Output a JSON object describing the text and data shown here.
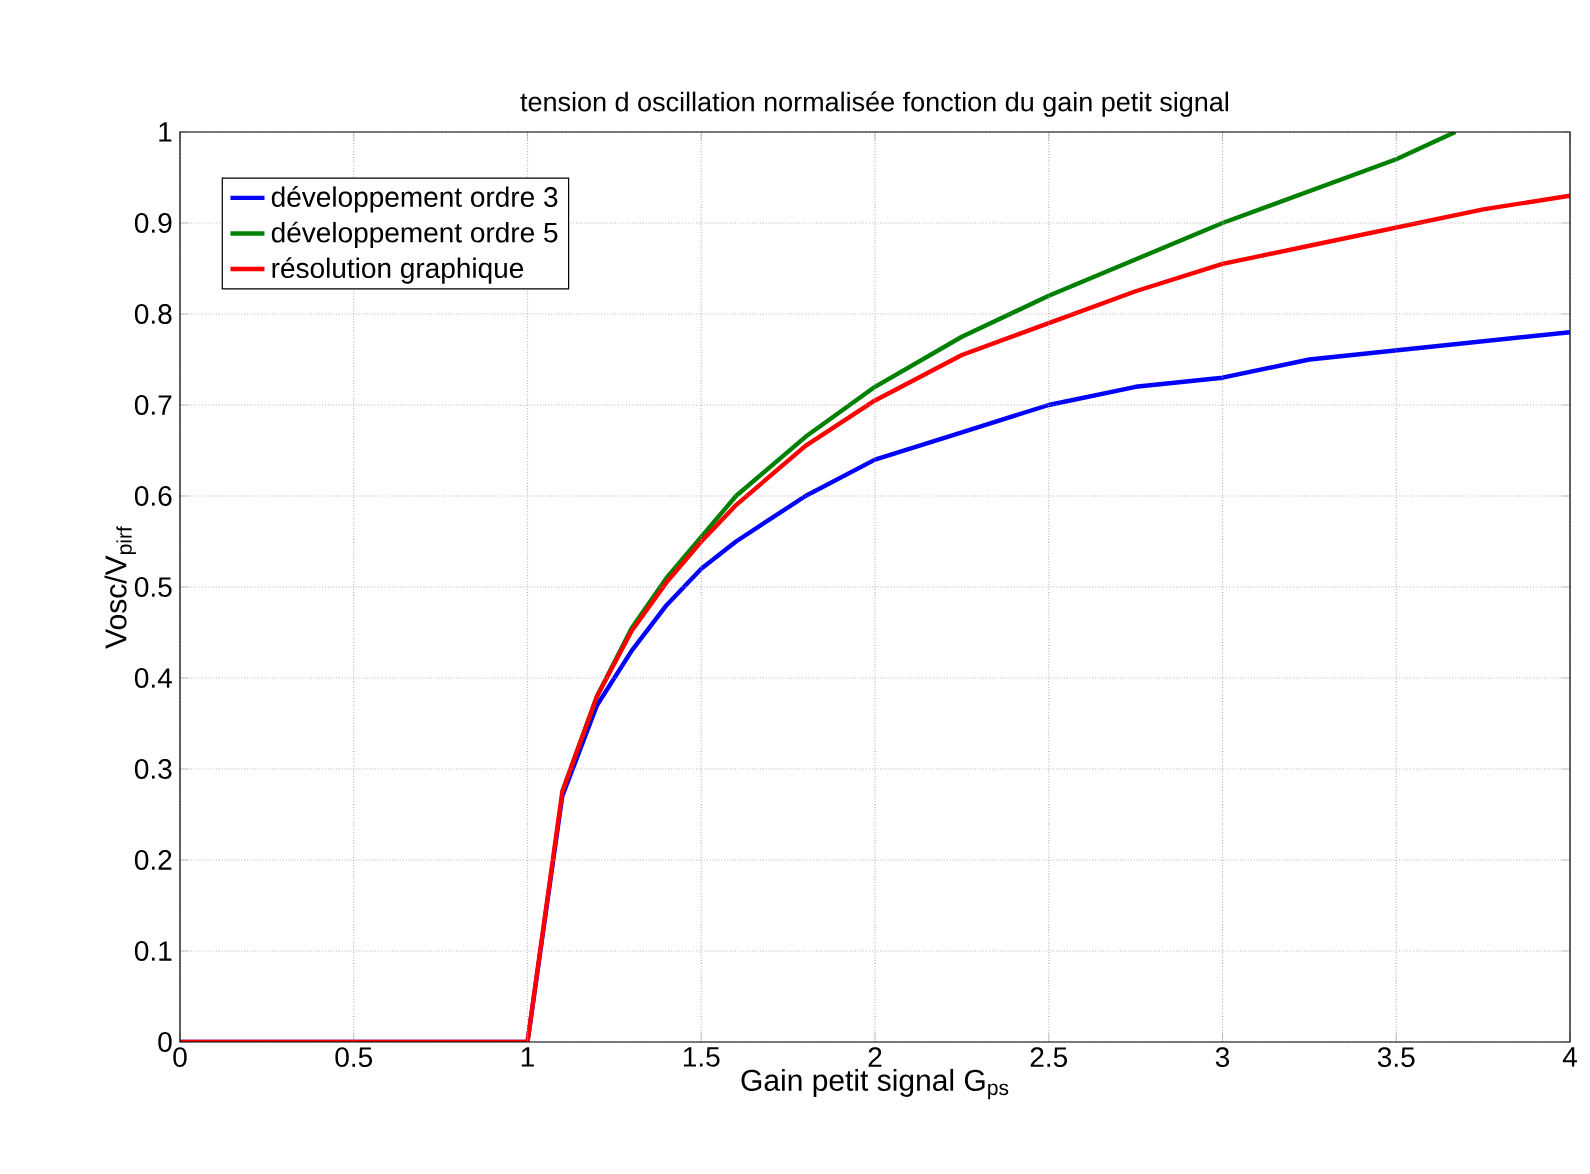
{
  "chart_data": {
    "type": "line",
    "title": "tension d oscillation normalisée fonction du gain petit signal",
    "xlabel": "Gain petit signal G$_{ps}$",
    "ylabel": "Vosc/V$_{pirf}$",
    "x": [
      0,
      1,
      1.1,
      1.2,
      1.3,
      1.4,
      1.5,
      1.6,
      1.8,
      2,
      2.25,
      2.5,
      2.75,
      3,
      3.25,
      3.5,
      3.75,
      4
    ],
    "series": [
      {
        "name": "développement ordre 3",
        "color": "#0000ff",
        "values": [
          0,
          0,
          0.27,
          0.37,
          0.43,
          0.48,
          0.52,
          0.55,
          0.6,
          0.64,
          0.67,
          0.7,
          0.72,
          0.73,
          0.75,
          0.76,
          0.77,
          0.78
        ]
      },
      {
        "name": "développement ordre 5",
        "color": "#008000",
        "x": [
          1.1,
          1.2,
          1.3,
          1.4,
          1.5,
          1.6,
          1.8,
          2,
          2.25,
          2.5,
          2.75,
          3,
          3.25,
          3.5,
          3.67
        ],
        "values": [
          0.275,
          0.38,
          0.455,
          0.51,
          0.555,
          0.6,
          0.665,
          0.72,
          0.775,
          0.82,
          0.86,
          0.9,
          0.935,
          0.97,
          1
        ]
      },
      {
        "name": "résolution graphique",
        "color": "#ff0000",
        "values": [
          0,
          0,
          0.275,
          0.38,
          0.452,
          0.505,
          0.55,
          0.59,
          0.655,
          0.705,
          0.755,
          0.79,
          0.825,
          0.855,
          0.875,
          0.895,
          0.915,
          0.93
        ]
      }
    ],
    "xlim": [
      0,
      4
    ],
    "ylim": [
      0,
      1
    ],
    "xticks": [
      0,
      0.5,
      1,
      1.5,
      2,
      2.5,
      3,
      3.5,
      4
    ],
    "yticks": [
      0,
      0.1,
      0.2,
      0.3,
      0.4,
      0.5,
      0.6,
      0.7,
      0.8,
      0.9,
      1
    ],
    "grid": true,
    "legend": "top left",
    "line_style": "solid",
    "marker": "none"
  }
}
